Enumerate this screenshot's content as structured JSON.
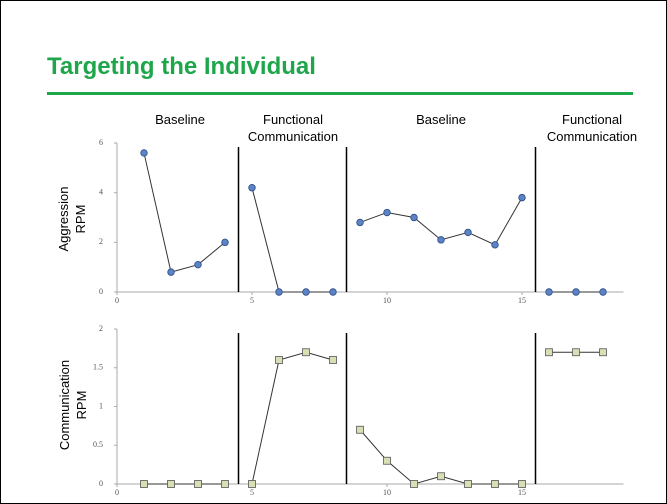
{
  "title": "Targeting the Individual",
  "phases": {
    "labels": [
      "Baseline",
      "Functional Communication",
      "Baseline",
      "Functional Communication"
    ],
    "boundaries": [
      4.5,
      8.5,
      15.5
    ]
  },
  "chart_data": [
    {
      "type": "line",
      "ylabel": "Aggression RPM",
      "marker": "circle",
      "color": "#5b83c6",
      "xlim": [
        0,
        19.5
      ],
      "xticks": [
        0,
        5,
        10,
        15
      ],
      "ylim": [
        0,
        6
      ],
      "yticks": [
        0,
        2,
        4,
        6
      ],
      "series": [
        {
          "x": [
            1,
            2,
            3,
            4
          ],
          "values": [
            5.6,
            0.8,
            1.1,
            2.0
          ]
        },
        {
          "x": [
            5,
            6,
            7,
            8
          ],
          "values": [
            4.2,
            0,
            0,
            0
          ]
        },
        {
          "x": [
            9,
            10,
            11,
            12,
            13,
            14,
            15
          ],
          "values": [
            2.8,
            3.2,
            3.0,
            2.1,
            2.4,
            1.9,
            3.8
          ]
        },
        {
          "x": [
            16,
            17,
            18
          ],
          "values": [
            0,
            0,
            0
          ]
        }
      ]
    },
    {
      "type": "line",
      "ylabel": "Communication RPM",
      "marker": "square",
      "color": "#d9dfb5",
      "xlim": [
        0,
        19.5
      ],
      "xticks": [
        0,
        5,
        10,
        15
      ],
      "ylim": [
        0,
        2
      ],
      "yticks": [
        0,
        0.5,
        1,
        1.5,
        2
      ],
      "series": [
        {
          "x": [
            1,
            2,
            3,
            4
          ],
          "values": [
            0,
            0,
            0,
            0
          ]
        },
        {
          "x": [
            5,
            6,
            7,
            8
          ],
          "values": [
            0,
            1.6,
            1.7,
            1.6
          ]
        },
        {
          "x": [
            9,
            10,
            11,
            12,
            13,
            14,
            15
          ],
          "values": [
            0.7,
            0.3,
            0,
            0.1,
            0,
            0,
            0
          ]
        },
        {
          "x": [
            16,
            17,
            18
          ],
          "values": [
            1.7,
            1.7,
            1.7
          ]
        }
      ]
    }
  ]
}
